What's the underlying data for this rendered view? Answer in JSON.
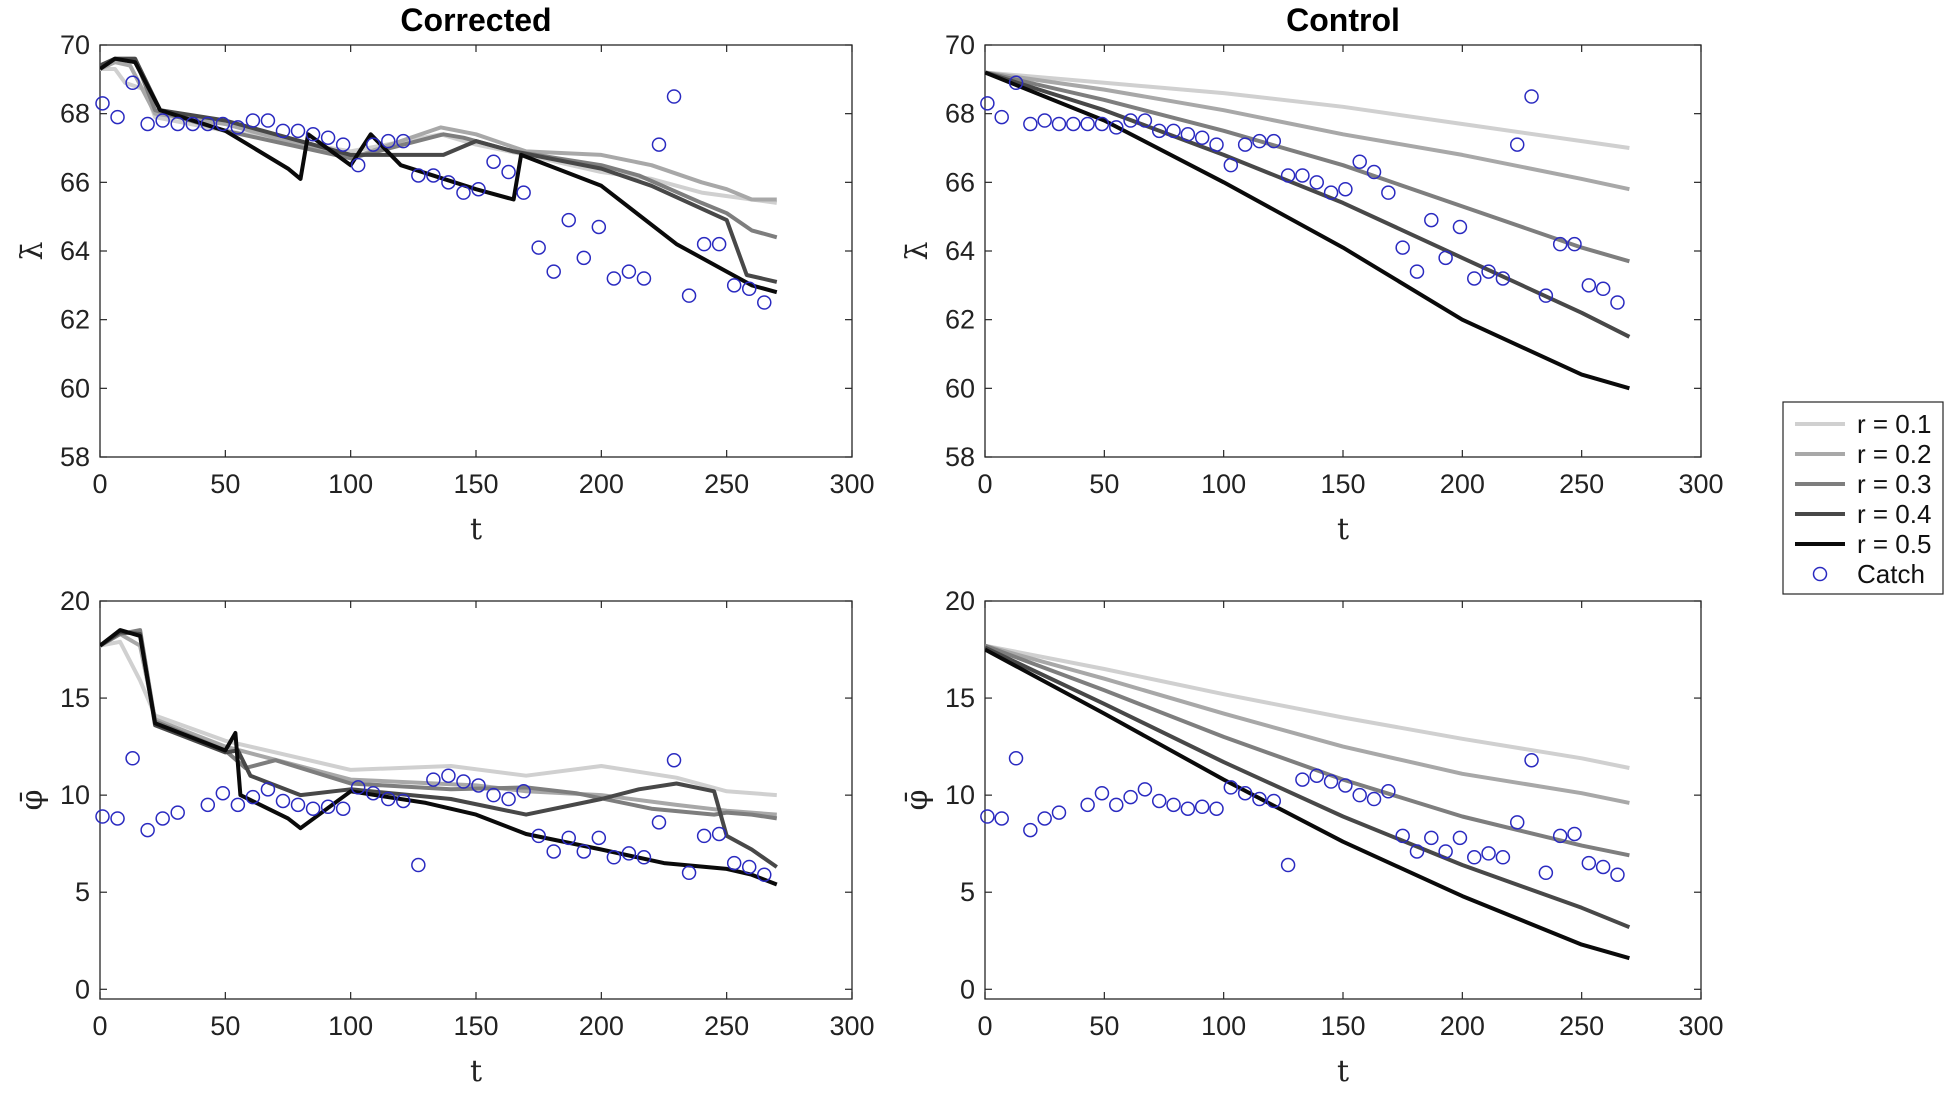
{
  "chart_data": [
    {
      "type": "line",
      "panel": "corrected-lambda",
      "title": "Corrected",
      "xlabel": "t",
      "ylabel": "λ̄",
      "xlim": [
        0,
        300
      ],
      "ylim": [
        58,
        70
      ],
      "xticks": [
        0,
        50,
        100,
        150,
        200,
        250,
        300
      ],
      "yticks": [
        58,
        60,
        62,
        64,
        66,
        68,
        70
      ],
      "catch": {
        "name": "Catch",
        "x": [
          1,
          7,
          13,
          19,
          25,
          31,
          37,
          43,
          49,
          55,
          61,
          67,
          73,
          79,
          85,
          91,
          97,
          103,
          109,
          115,
          121,
          127,
          133,
          139,
          145,
          151,
          157,
          163,
          169,
          175,
          181,
          187,
          193,
          199,
          205,
          211,
          217,
          223,
          229,
          235,
          241,
          247,
          253,
          259,
          265
        ],
        "y": [
          68.3,
          67.9,
          68.9,
          67.7,
          67.8,
          67.7,
          67.7,
          67.7,
          67.7,
          67.6,
          67.8,
          67.8,
          67.5,
          67.5,
          67.4,
          67.3,
          67.1,
          66.5,
          67.1,
          67.2,
          67.2,
          66.2,
          66.2,
          66.0,
          65.7,
          65.8,
          66.6,
          66.3,
          65.7,
          64.1,
          63.4,
          64.9,
          63.8,
          64.7,
          63.2,
          63.4,
          63.2,
          67.1,
          68.5,
          62.7,
          64.2,
          64.2,
          63.0,
          62.9,
          62.5
        ]
      },
      "series": [
        {
          "name": "r = 0.1",
          "x": [
            0,
            6,
            10,
            18,
            22,
            50,
            100,
            136,
            150,
            170,
            200,
            220,
            240,
            260,
            270
          ],
          "y": [
            69.3,
            69.3,
            68.9,
            68.7,
            67.9,
            67.5,
            66.9,
            67.4,
            67.1,
            66.8,
            66.3,
            66.1,
            65.7,
            65.5,
            65.4
          ]
        },
        {
          "name": "r = 0.2",
          "x": [
            0,
            6,
            12,
            22,
            50,
            100,
            136,
            150,
            170,
            200,
            220,
            240,
            250,
            260,
            270
          ],
          "y": [
            69.3,
            69.5,
            69.4,
            68.0,
            67.7,
            66.7,
            67.6,
            67.4,
            66.9,
            66.8,
            66.5,
            66.0,
            65.8,
            65.5,
            65.5
          ]
        },
        {
          "name": "r = 0.3",
          "x": [
            0,
            6,
            14,
            22,
            50,
            100,
            137,
            145,
            165,
            200,
            215,
            240,
            250,
            260,
            270
          ],
          "y": [
            69.4,
            69.6,
            69.6,
            68.1,
            67.5,
            66.7,
            67.4,
            67.3,
            66.9,
            66.5,
            66.2,
            65.4,
            65.1,
            64.6,
            64.4
          ]
        },
        {
          "name": "r = 0.4",
          "x": [
            0,
            6,
            14,
            24,
            50,
            100,
            137,
            150,
            165,
            200,
            220,
            235,
            250,
            258,
            270
          ],
          "y": [
            69.4,
            69.6,
            69.6,
            68.1,
            67.8,
            66.8,
            66.8,
            67.2,
            66.9,
            66.4,
            65.9,
            65.4,
            64.9,
            63.3,
            63.1
          ]
        },
        {
          "name": "r = 0.5",
          "x": [
            0,
            6,
            14,
            24,
            50,
            75,
            80,
            83,
            100,
            108,
            120,
            150,
            165,
            168,
            200,
            230,
            250,
            260,
            270
          ],
          "y": [
            69.3,
            69.6,
            69.5,
            68.1,
            67.5,
            66.4,
            66.1,
            67.4,
            66.5,
            67.4,
            66.5,
            65.8,
            65.5,
            66.8,
            65.9,
            64.2,
            63.4,
            63.0,
            62.8
          ]
        }
      ]
    },
    {
      "type": "line",
      "panel": "control-lambda",
      "title": "Control",
      "xlabel": "t",
      "ylabel": "λ̄",
      "xlim": [
        0,
        300
      ],
      "ylim": [
        58,
        70
      ],
      "xticks": [
        0,
        50,
        100,
        150,
        200,
        250,
        300
      ],
      "yticks": [
        58,
        60,
        62,
        64,
        66,
        68,
        70
      ],
      "catch": {
        "name": "Catch",
        "x": [
          1,
          7,
          13,
          19,
          25,
          31,
          37,
          43,
          49,
          55,
          61,
          67,
          73,
          79,
          85,
          91,
          97,
          103,
          109,
          115,
          121,
          127,
          133,
          139,
          145,
          151,
          157,
          163,
          169,
          175,
          181,
          187,
          193,
          199,
          205,
          211,
          217,
          223,
          229,
          235,
          241,
          247,
          253,
          259,
          265
        ],
        "y": [
          68.3,
          67.9,
          68.9,
          67.7,
          67.8,
          67.7,
          67.7,
          67.7,
          67.7,
          67.6,
          67.8,
          67.8,
          67.5,
          67.5,
          67.4,
          67.3,
          67.1,
          66.5,
          67.1,
          67.2,
          67.2,
          66.2,
          66.2,
          66.0,
          65.7,
          65.8,
          66.6,
          66.3,
          65.7,
          64.1,
          63.4,
          64.9,
          63.8,
          64.7,
          63.2,
          63.4,
          63.2,
          67.1,
          68.5,
          62.7,
          64.2,
          64.2,
          63.0,
          62.9,
          62.5
        ]
      },
      "series": [
        {
          "name": "r = 0.1",
          "x": [
            0,
            50,
            100,
            150,
            200,
            250,
            270
          ],
          "y": [
            69.2,
            68.9,
            68.6,
            68.2,
            67.7,
            67.2,
            67.0
          ]
        },
        {
          "name": "r = 0.2",
          "x": [
            0,
            50,
            100,
            150,
            200,
            250,
            270
          ],
          "y": [
            69.2,
            68.7,
            68.1,
            67.4,
            66.8,
            66.1,
            65.8
          ]
        },
        {
          "name": "r = 0.3",
          "x": [
            0,
            50,
            100,
            150,
            200,
            250,
            270
          ],
          "y": [
            69.2,
            68.4,
            67.5,
            66.5,
            65.3,
            64.1,
            63.7
          ]
        },
        {
          "name": "r = 0.4",
          "x": [
            0,
            50,
            100,
            150,
            200,
            250,
            270
          ],
          "y": [
            69.2,
            68.1,
            66.8,
            65.4,
            63.8,
            62.2,
            61.5
          ]
        },
        {
          "name": "r = 0.5",
          "x": [
            0,
            50,
            100,
            150,
            200,
            250,
            270
          ],
          "y": [
            69.2,
            67.8,
            66.0,
            64.1,
            62.0,
            60.4,
            60.0
          ]
        }
      ]
    },
    {
      "type": "line",
      "panel": "corrected-phi",
      "title": "",
      "xlabel": "t",
      "ylabel": "φ̄",
      "xlim": [
        0,
        300
      ],
      "ylim": [
        -0.5,
        20
      ],
      "xticks": [
        0,
        50,
        100,
        150,
        200,
        250,
        300
      ],
      "yticks": [
        0,
        5,
        10,
        15,
        20
      ],
      "catch": {
        "name": "Catch",
        "x": [
          1,
          7,
          13,
          19,
          25,
          31,
          43,
          49,
          55,
          61,
          67,
          73,
          79,
          85,
          91,
          97,
          103,
          109,
          115,
          121,
          127,
          133,
          139,
          145,
          151,
          157,
          163,
          169,
          175,
          181,
          187,
          193,
          199,
          205,
          211,
          217,
          223,
          229,
          235,
          241,
          247,
          253,
          259,
          265
        ],
        "y": [
          8.9,
          8.8,
          11.9,
          8.2,
          8.8,
          9.1,
          9.5,
          10.1,
          9.5,
          9.9,
          10.3,
          9.7,
          9.5,
          9.3,
          9.4,
          9.3,
          10.4,
          10.1,
          9.8,
          9.7,
          6.4,
          10.8,
          11.0,
          10.7,
          10.5,
          10.0,
          9.8,
          10.2,
          7.9,
          7.1,
          7.8,
          7.1,
          7.8,
          6.8,
          7.0,
          6.8,
          8.6,
          11.8,
          6.0,
          7.9,
          8.0,
          6.5,
          6.3,
          5.9
        ]
      },
      "series": [
        {
          "name": "r = 0.1",
          "x": [
            0,
            8,
            16,
            22,
            50,
            100,
            140,
            170,
            200,
            230,
            250,
            270
          ],
          "y": [
            17.7,
            17.9,
            15.9,
            14.1,
            12.8,
            11.3,
            11.5,
            11.0,
            11.5,
            10.9,
            10.2,
            10.0
          ]
        },
        {
          "name": "r = 0.2",
          "x": [
            0,
            8,
            16,
            22,
            50,
            100,
            150,
            170,
            200,
            230,
            250,
            270
          ],
          "y": [
            17.7,
            18.3,
            17.7,
            13.9,
            12.5,
            10.8,
            10.5,
            10.2,
            10.0,
            9.5,
            9.2,
            9.0
          ]
        },
        {
          "name": "r = 0.3",
          "x": [
            0,
            8,
            16,
            22,
            50,
            58,
            70,
            100,
            140,
            170,
            190,
            220,
            245,
            250,
            260,
            270
          ],
          "y": [
            17.7,
            18.3,
            18.5,
            13.8,
            12.3,
            11.4,
            11.8,
            10.6,
            10.3,
            10.4,
            10.1,
            9.3,
            9.0,
            9.1,
            9.0,
            8.8
          ]
        },
        {
          "name": "r = 0.4",
          "x": [
            0,
            8,
            16,
            22,
            50,
            55,
            60,
            80,
            100,
            140,
            170,
            200,
            215,
            230,
            245,
            250,
            260,
            270
          ],
          "y": [
            17.7,
            18.4,
            18.3,
            13.6,
            12.2,
            12.3,
            11.0,
            10.0,
            10.3,
            9.8,
            9.0,
            9.8,
            10.3,
            10.6,
            10.2,
            7.9,
            7.2,
            6.3
          ]
        },
        {
          "name": "r = 0.5",
          "x": [
            0,
            8,
            16,
            22,
            50,
            54,
            56,
            75,
            80,
            100,
            130,
            150,
            170,
            200,
            225,
            250,
            260,
            270
          ],
          "y": [
            17.7,
            18.5,
            18.2,
            13.7,
            12.3,
            13.2,
            10.0,
            8.8,
            8.3,
            10.2,
            9.6,
            9.0,
            8.0,
            7.2,
            6.5,
            6.2,
            5.9,
            5.4
          ]
        }
      ]
    },
    {
      "type": "line",
      "panel": "control-phi",
      "title": "",
      "xlabel": "t",
      "ylabel": "φ̄",
      "xlim": [
        0,
        300
      ],
      "ylim": [
        -0.5,
        20
      ],
      "xticks": [
        0,
        50,
        100,
        150,
        200,
        250,
        300
      ],
      "yticks": [
        0,
        5,
        10,
        15,
        20
      ],
      "catch": {
        "name": "Catch",
        "x": [
          1,
          7,
          13,
          19,
          25,
          31,
          43,
          49,
          55,
          61,
          67,
          73,
          79,
          85,
          91,
          97,
          103,
          109,
          115,
          121,
          127,
          133,
          139,
          145,
          151,
          157,
          163,
          169,
          175,
          181,
          187,
          193,
          199,
          205,
          211,
          217,
          223,
          229,
          235,
          241,
          247,
          253,
          259,
          265
        ],
        "y": [
          8.9,
          8.8,
          11.9,
          8.2,
          8.8,
          9.1,
          9.5,
          10.1,
          9.5,
          9.9,
          10.3,
          9.7,
          9.5,
          9.3,
          9.4,
          9.3,
          10.4,
          10.1,
          9.8,
          9.7,
          6.4,
          10.8,
          11.0,
          10.7,
          10.5,
          10.0,
          9.8,
          10.2,
          7.9,
          7.1,
          7.8,
          7.1,
          7.8,
          6.8,
          7.0,
          6.8,
          8.6,
          11.8,
          6.0,
          7.9,
          8.0,
          6.5,
          6.3,
          5.9
        ]
      },
      "series": [
        {
          "name": "r = 0.1",
          "x": [
            0,
            50,
            100,
            150,
            200,
            250,
            270
          ],
          "y": [
            17.7,
            16.5,
            15.2,
            14.0,
            12.9,
            11.9,
            11.4
          ]
        },
        {
          "name": "r = 0.2",
          "x": [
            0,
            50,
            100,
            150,
            200,
            250,
            270
          ],
          "y": [
            17.7,
            16.0,
            14.2,
            12.5,
            11.1,
            10.1,
            9.6
          ]
        },
        {
          "name": "r = 0.3",
          "x": [
            0,
            50,
            100,
            150,
            200,
            250,
            270
          ],
          "y": [
            17.7,
            15.4,
            13.0,
            10.8,
            8.9,
            7.4,
            6.9
          ]
        },
        {
          "name": "r = 0.4",
          "x": [
            0,
            50,
            100,
            150,
            200,
            250,
            270
          ],
          "y": [
            17.6,
            14.7,
            11.7,
            8.9,
            6.4,
            4.2,
            3.2
          ]
        },
        {
          "name": "r = 0.5",
          "x": [
            0,
            50,
            100,
            150,
            200,
            250,
            270
          ],
          "y": [
            17.5,
            14.2,
            10.8,
            7.6,
            4.8,
            2.3,
            1.6
          ]
        }
      ]
    }
  ],
  "legend": {
    "placement": "right-middle",
    "entries": [
      {
        "label": "r = 0.1",
        "color": "#d0d0d0",
        "kind": "line"
      },
      {
        "label": "r = 0.2",
        "color": "#a8a8a8",
        "kind": "line"
      },
      {
        "label": "r = 0.3",
        "color": "#7e7e7e",
        "kind": "line"
      },
      {
        "label": "r = 0.4",
        "color": "#484848",
        "kind": "line"
      },
      {
        "label": "r = 0.5",
        "color": "#0a0a0a",
        "kind": "line"
      },
      {
        "label": "Catch",
        "color": "#2a2ac0",
        "kind": "marker"
      }
    ]
  },
  "colors": {
    "r01": "#d0d0d0",
    "r02": "#a8a8a8",
    "r03": "#7e7e7e",
    "r04": "#484848",
    "r05": "#0a0a0a",
    "catch": "#2a2ac0",
    "axis": "#262626"
  }
}
